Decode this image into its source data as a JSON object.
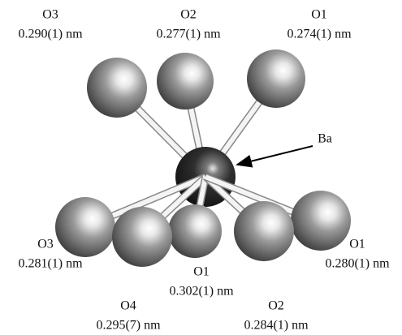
{
  "center": {
    "label": "Ba"
  },
  "atoms": [
    {
      "label": "O3",
      "distance": "0.290(1) nm"
    },
    {
      "label": "O2",
      "distance": "0.277(1) nm"
    },
    {
      "label": "O1",
      "distance": "0.274(1) nm"
    },
    {
      "label": "O3",
      "distance": "0.281(1) nm"
    },
    {
      "label": "O1",
      "distance": "0.302(1) nm"
    },
    {
      "label": "O1",
      "distance": "0.280(1) nm"
    },
    {
      "label": "O4",
      "distance": "0.295(7) nm"
    },
    {
      "label": "O2",
      "distance": "0.284(1) nm"
    }
  ]
}
